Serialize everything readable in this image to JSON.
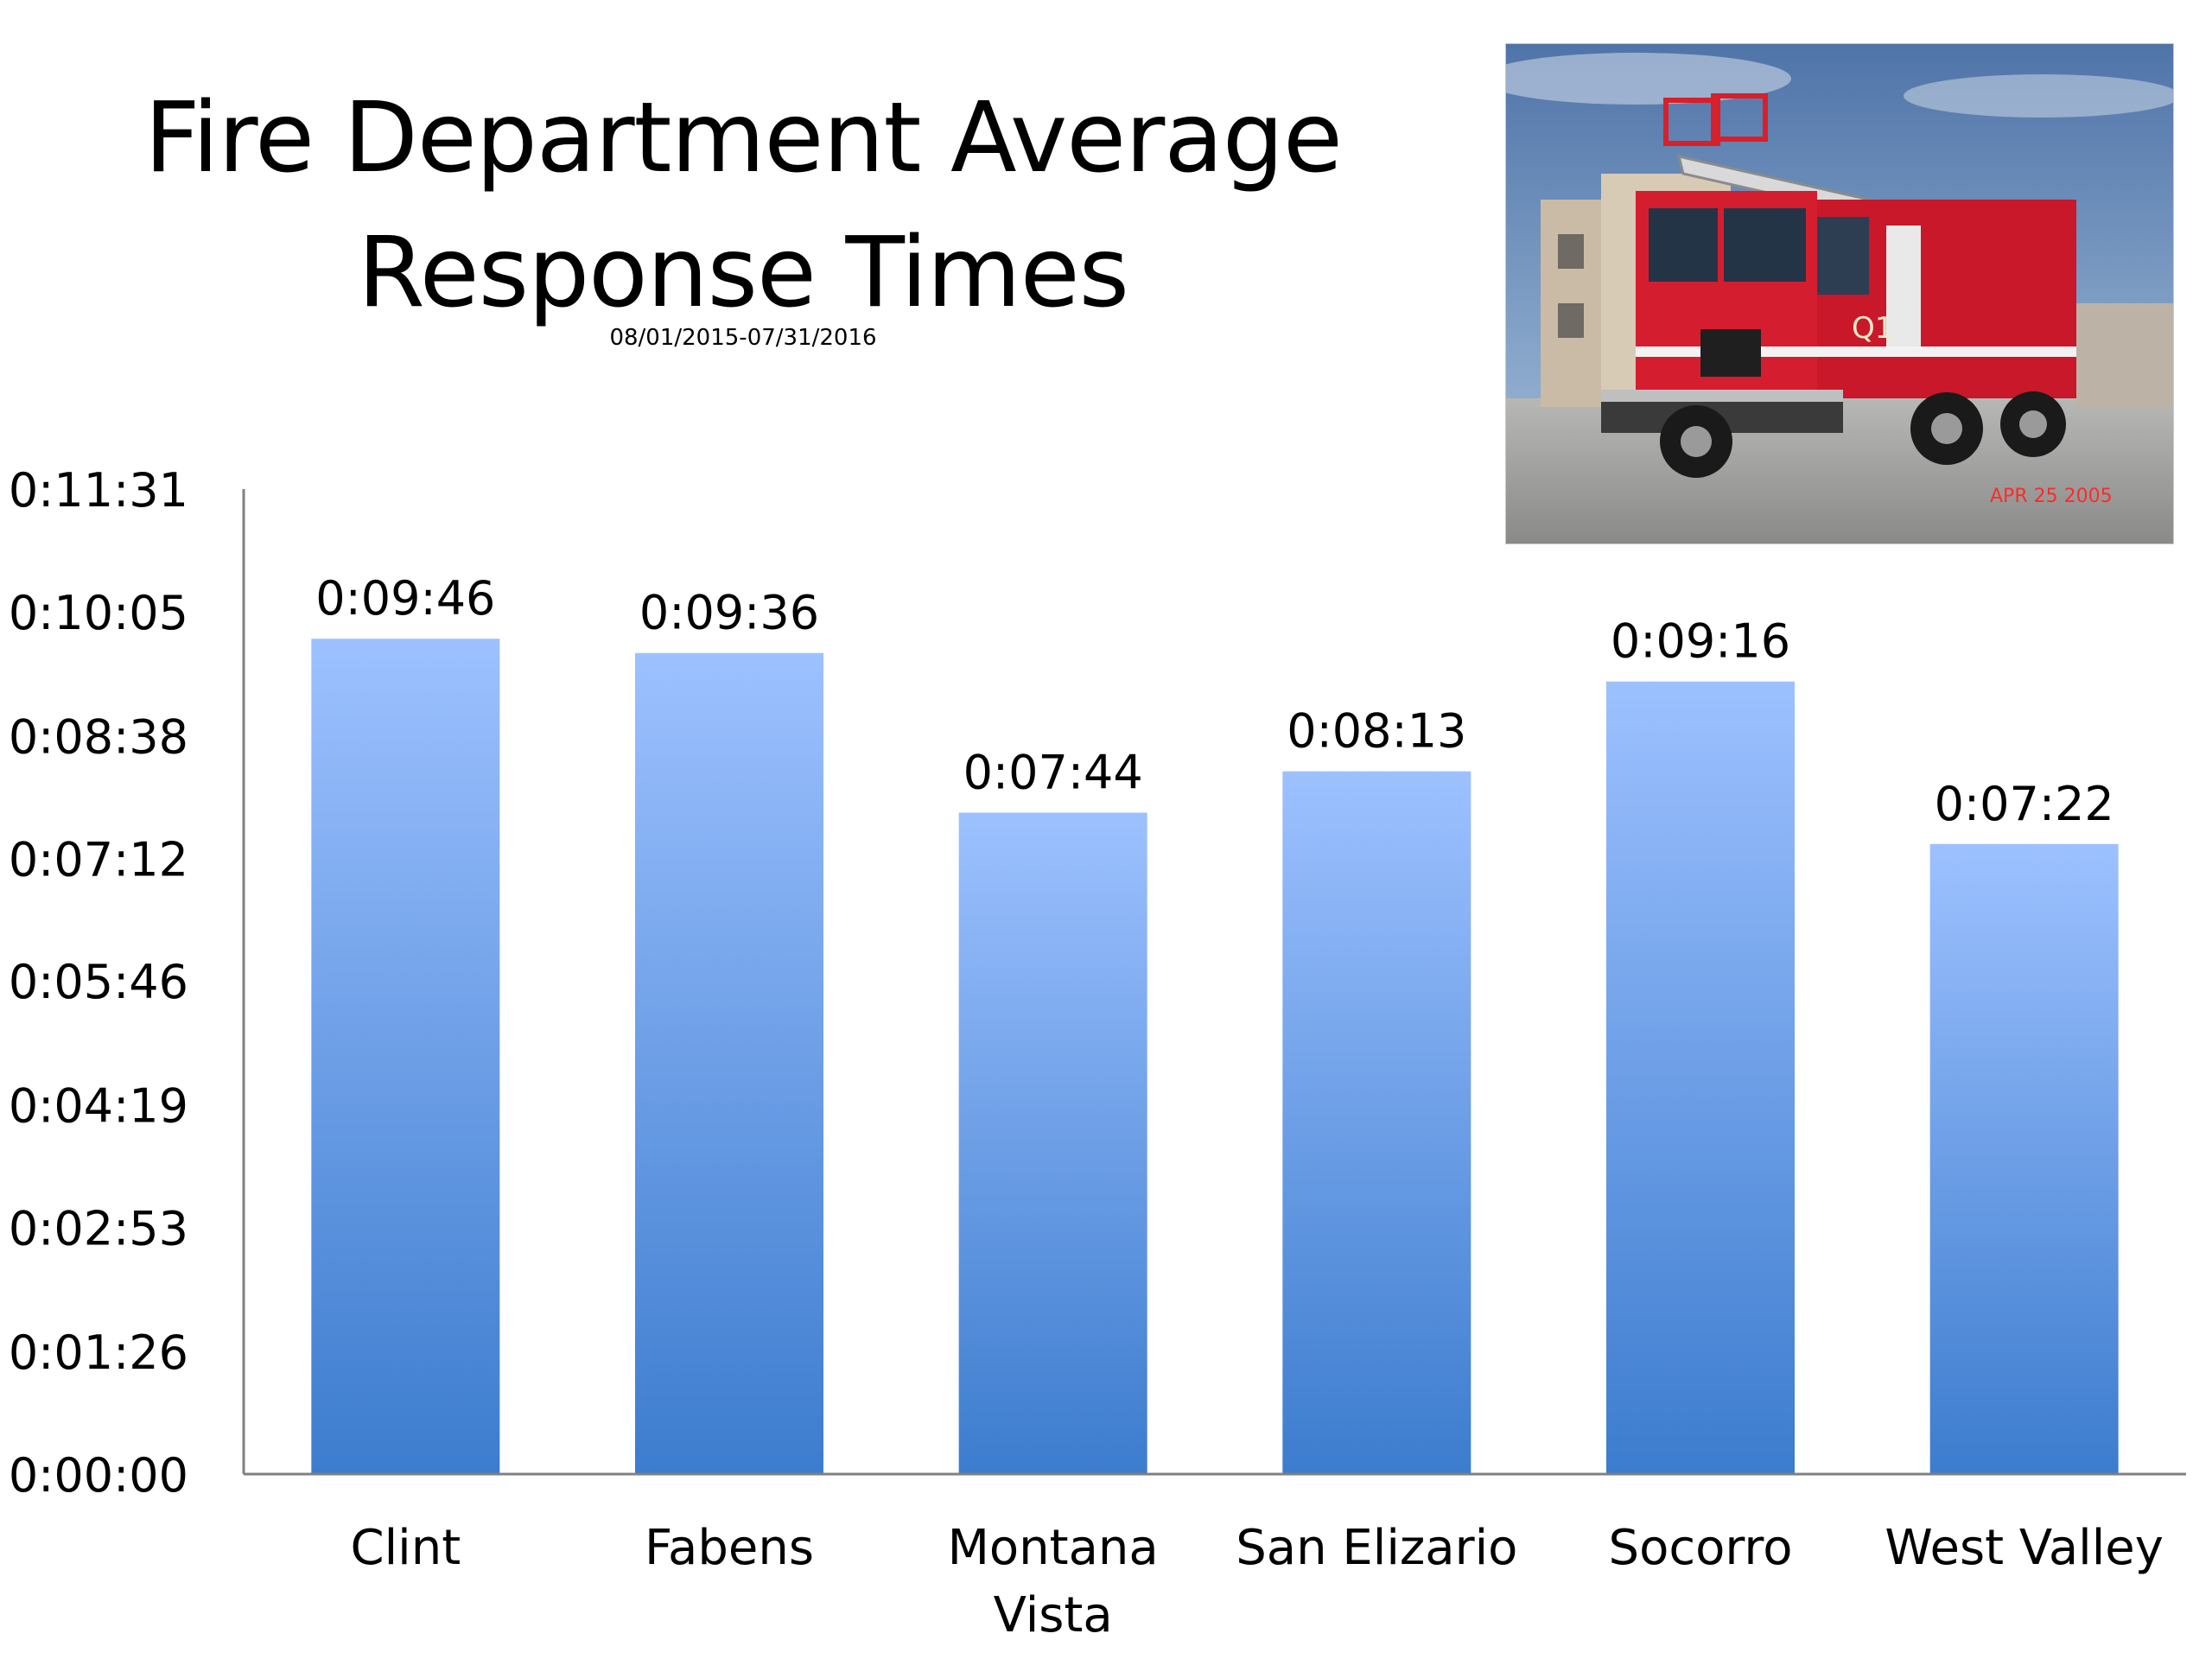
{
  "title_lines": [
    "Fire Department Average",
    "Response Times"
  ],
  "subtitle": "08/01/2015-07/31/2016",
  "photo": {
    "stamp": "APR 25 2005",
    "truck_number": "Q1"
  },
  "colors": {
    "bar_top": "#9dc1ff",
    "bar_bottom": "#3c7cce",
    "axis": "#808080"
  },
  "chart_data": {
    "type": "bar",
    "title": "Fire Department Average Response Times",
    "subtitle": "08/01/2015-07/31/2016",
    "categories": [
      "Clint",
      "Fabens",
      "Montana Vista",
      "San Elizario",
      "Socorro",
      "West Valley"
    ],
    "category_lines": [
      [
        "Clint"
      ],
      [
        "Fabens"
      ],
      [
        "Montana",
        "Vista"
      ],
      [
        "San Elizario"
      ],
      [
        "Socorro"
      ],
      [
        "West Valley"
      ]
    ],
    "values_seconds": [
      586,
      576,
      464,
      493,
      556,
      442
    ],
    "data_labels": [
      "0:09:46",
      "0:09:36",
      "0:07:44",
      "0:08:13",
      "0:09:16",
      "0:07:22"
    ],
    "y_ticks_seconds": [
      0,
      86,
      173,
      259,
      346,
      432,
      518,
      605,
      691
    ],
    "y_tick_labels": [
      "0:00:00",
      "0:01:26",
      "0:02:53",
      "0:04:19",
      "0:05:46",
      "0:07:12",
      "0:08:38",
      "0:10:05",
      "0:11:31"
    ],
    "ylim_seconds": [
      0,
      691
    ],
    "grid": false,
    "legend": "none"
  }
}
